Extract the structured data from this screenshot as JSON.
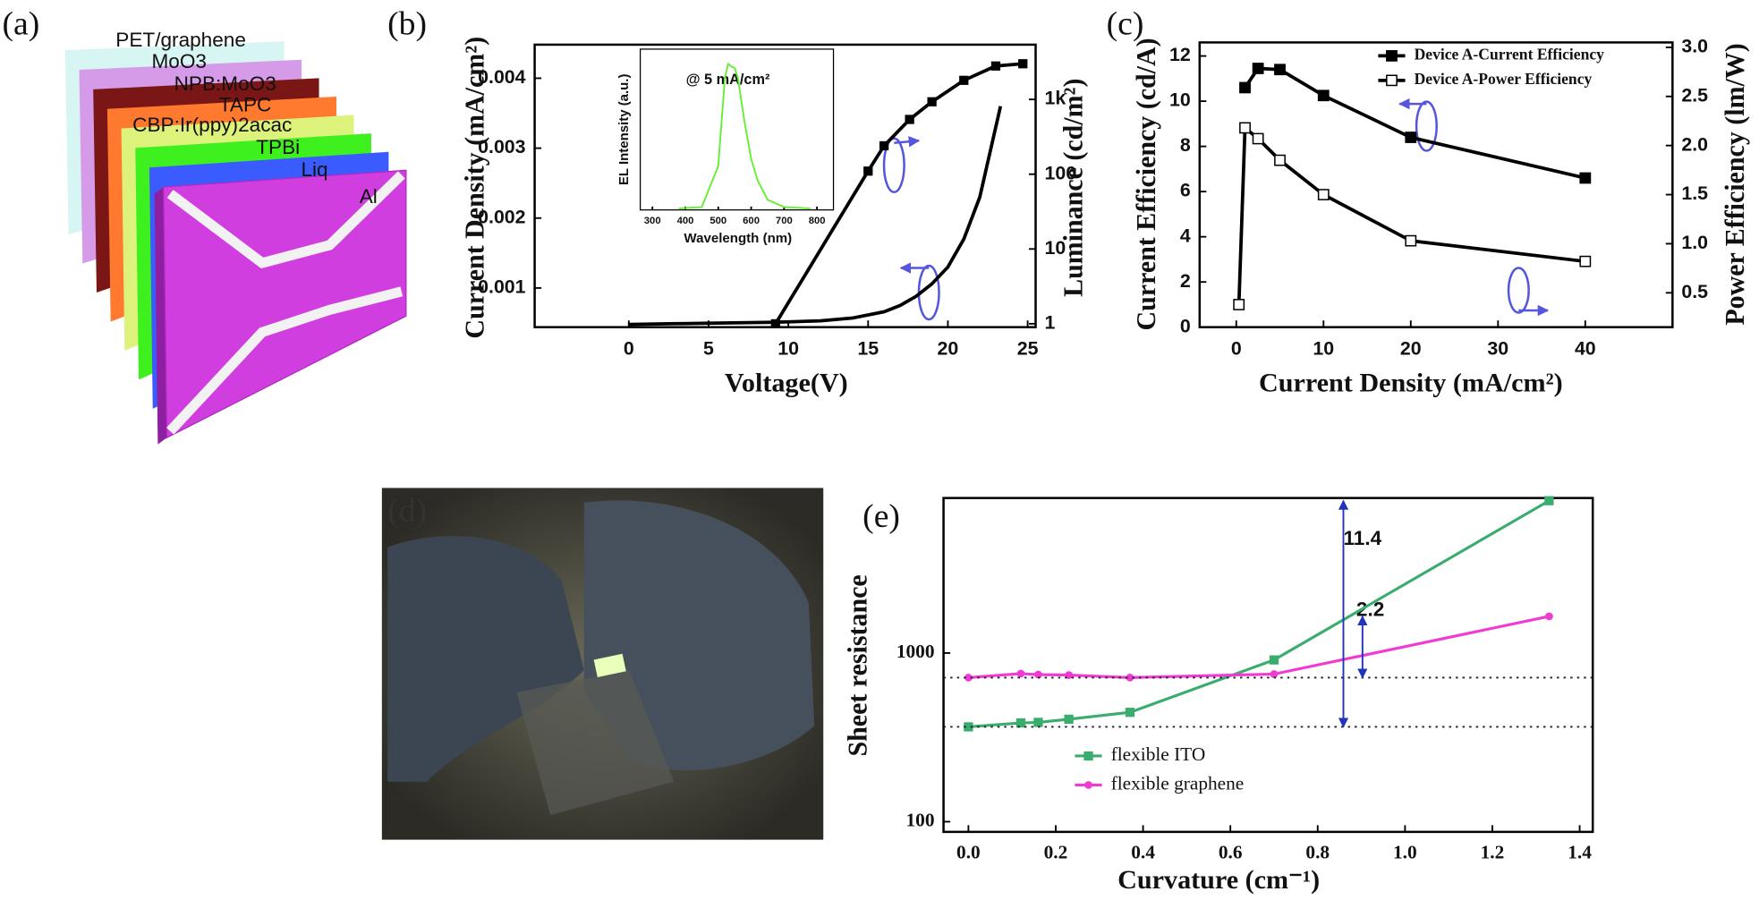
{
  "diagram": {
    "label": "(a)",
    "layers": [
      {
        "label": "PET/graphene",
        "color": "#cdf3ef"
      },
      {
        "label": "MoO3",
        "color": "#d59be8"
      },
      {
        "label": "NPB:MoO3",
        "color": "#7a1616"
      },
      {
        "label": "TAPC",
        "color": "#ff7a2e"
      },
      {
        "label": "CBP:Ir(ppy)2acac",
        "color": "#dcf27a"
      },
      {
        "label": "TPBi",
        "color": "#3ff01f"
      },
      {
        "label": "Liq",
        "color": "#3a5cff"
      },
      {
        "label": "Al",
        "color": "#d13ee0"
      }
    ]
  },
  "photo": {
    "label": "(d)"
  },
  "chart_data": [
    {
      "type": "line",
      "label": "(b)",
      "xlabel": "Voltage(V)",
      "ylabel": "Current Density (mA/cm²)",
      "y2label": "Luminance (cd/m²)",
      "xlim": [
        -5.9,
        25.5
      ],
      "xticks": [
        0,
        5,
        10,
        15,
        20,
        25
      ],
      "ylim": [
        0.00044,
        0.00448
      ],
      "yticks": [
        0.001,
        0.002,
        0.003,
        0.004
      ],
      "y2lim": [
        0.9,
        5400
      ],
      "y2log": true,
      "y2ticks": [
        1,
        10,
        100,
        {
          "value": 1000,
          "label": "1k"
        }
      ],
      "series": [
        {
          "color": "#000000",
          "marker": "none",
          "x": [
            0,
            3,
            6,
            9,
            12,
            14,
            16,
            17,
            18,
            19,
            20,
            21,
            22,
            23.3
          ],
          "values": [
            0.00048,
            0.00049,
            0.0005,
            0.00051,
            0.00053,
            0.00057,
            0.00066,
            0.00075,
            0.00088,
            0.00106,
            0.0013,
            0.0017,
            0.0023,
            0.0036
          ]
        },
        {
          "color": "#000000",
          "marker": "square",
          "axis": "y2",
          "x": [
            9.2,
            15,
            16,
            17.6,
            19,
            21,
            23,
            24.7
          ],
          "values": [
            1.0,
            110,
            240,
            540,
            930,
            1800,
            2800,
            3000
          ]
        }
      ]
    },
    {
      "type": "line",
      "xlabel": "Wavelength (nm)",
      "ylabel": "EL Intensity (a.u.)",
      "annotations": [
        "@ 5 mA/cm²"
      ],
      "xlim": [
        263,
        850
      ],
      "xticks": [
        300,
        400,
        500,
        600,
        700,
        800
      ],
      "ylim": [
        0,
        1.1
      ],
      "series": [
        {
          "color": "#66ee33",
          "marker": "none",
          "x": [
            380,
            450,
            500,
            520,
            530,
            540,
            550,
            560,
            580,
            600,
            620,
            650,
            700,
            780
          ],
          "values": [
            0.01,
            0.02,
            0.3,
            0.9,
            1.0,
            0.98,
            0.97,
            0.9,
            0.6,
            0.35,
            0.2,
            0.07,
            0.02,
            0.01
          ]
        }
      ]
    },
    {
      "type": "line",
      "label": "(c)",
      "xlabel": "Current Density (mA/cm²)",
      "ylabel": "Current Efficiency (cd/A)",
      "y2label": "Power Efficiency (lm/W)",
      "xlim": [
        -4.2,
        50
      ],
      "xticks": [
        0,
        10,
        20,
        30,
        40
      ],
      "ylim": [
        0,
        12.6
      ],
      "yticks": [
        0,
        2,
        4,
        6,
        8,
        10,
        12
      ],
      "y2lim": [
        0.15,
        3.05
      ],
      "y2ticks": [
        0.5,
        {
          "value": 1,
          "label": "1.0"
        },
        1.5,
        {
          "value": 2,
          "label": "2.0"
        },
        2.5,
        {
          "value": 3,
          "label": "3.0"
        }
      ],
      "legend": "upper right",
      "series": [
        {
          "name": "Device A-Current Efficiency",
          "color": "#000000",
          "marker": "square",
          "x": [
            1,
            2.5,
            5,
            10,
            20,
            40
          ],
          "values": [
            10.6,
            11.45,
            11.4,
            10.25,
            8.4,
            6.6
          ]
        },
        {
          "name": "Device A-Power Efficiency",
          "color": "#000000",
          "marker": "open-square",
          "axis": "y2",
          "x": [
            0.3,
            1,
            2.5,
            5,
            10,
            20,
            40
          ],
          "values": [
            0.38,
            2.18,
            2.07,
            1.85,
            1.5,
            1.03,
            0.82
          ]
        }
      ]
    },
    {
      "type": "line",
      "label": "(e)",
      "xlabel": "Curvature (cm⁻¹)",
      "ylabel": "Sheet resistance",
      "annotations": [
        "11.4",
        "2.2"
      ],
      "xlim": [
        -0.057,
        1.43
      ],
      "xticks": [
        {
          "value": 0,
          "label": "0.0"
        },
        0.2,
        0.4,
        0.6,
        0.8,
        {
          "value": 1,
          "label": "1.0"
        },
        1.2,
        1.4
      ],
      "ylim": [
        87,
        8300
      ],
      "ylog": true,
      "yticks": [
        100,
        1000
      ],
      "legend": "lower center",
      "series": [
        {
          "name": "flexible ITO",
          "color": "#3aad6e",
          "marker": "square",
          "x": [
            0,
            0.12,
            0.16,
            0.23,
            0.37,
            0.7,
            1.33
          ],
          "values": [
            365,
            385,
            388,
            405,
            445,
            910,
            8000
          ]
        },
        {
          "name": "flexible graphene",
          "color": "#f03ad2",
          "marker": "circle",
          "x": [
            0,
            0.12,
            0.16,
            0.23,
            0.37,
            0.7,
            1.33
          ],
          "values": [
            715,
            755,
            745,
            740,
            715,
            750,
            1650
          ]
        }
      ]
    }
  ]
}
